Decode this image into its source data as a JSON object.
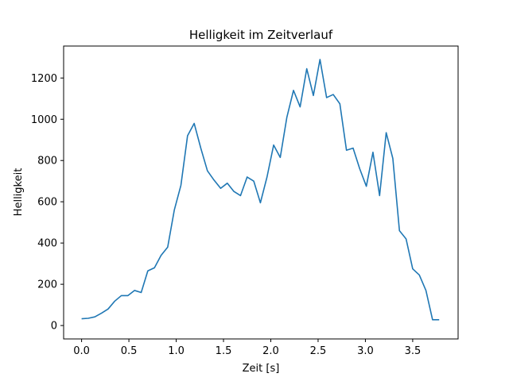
{
  "chart_data": {
    "type": "line",
    "title": "Helligkeit im Zeitverlauf",
    "xlabel": "Zeit [s]",
    "ylabel": "Helligkeit",
    "xlim": [
      -0.19,
      3.98
    ],
    "ylim": [
      -65,
      1355
    ],
    "xticks": [
      0.0,
      0.5,
      1.0,
      1.5,
      2.0,
      2.5,
      3.0,
      3.5
    ],
    "xtick_labels": [
      "0.0",
      "0.5",
      "1.0",
      "1.5",
      "2.0",
      "2.5",
      "3.0",
      "3.5"
    ],
    "yticks": [
      0,
      200,
      400,
      600,
      800,
      1000,
      1200
    ],
    "ytick_labels": [
      "0",
      "200",
      "400",
      "600",
      "800",
      "1000",
      "1200"
    ],
    "grid": false,
    "series": [
      {
        "color": "#1f77b4",
        "x": [
          0.0,
          0.07,
          0.14,
          0.21,
          0.28,
          0.35,
          0.42,
          0.49,
          0.56,
          0.63,
          0.7,
          0.77,
          0.84,
          0.91,
          0.98,
          1.05,
          1.12,
          1.19,
          1.26,
          1.33,
          1.4,
          1.47,
          1.54,
          1.61,
          1.68,
          1.75,
          1.82,
          1.89,
          1.96,
          2.03,
          2.1,
          2.17,
          2.24,
          2.31,
          2.38,
          2.45,
          2.52,
          2.59,
          2.66,
          2.73,
          2.8,
          2.87,
          2.94,
          3.01,
          3.08,
          3.15,
          3.22,
          3.29,
          3.36,
          3.43,
          3.5,
          3.57,
          3.64,
          3.71,
          3.78
        ],
        "y": [
          33,
          35,
          42,
          60,
          80,
          118,
          145,
          145,
          170,
          160,
          265,
          280,
          340,
          380,
          560,
          680,
          920,
          980,
          860,
          750,
          705,
          665,
          690,
          650,
          630,
          720,
          700,
          595,
          720,
          875,
          815,
          1010,
          1140,
          1060,
          1245,
          1115,
          1290,
          1105,
          1120,
          1075,
          850,
          860,
          760,
          675,
          840,
          630,
          935,
          810,
          460,
          420,
          275,
          245,
          170,
          28,
          28
        ]
      }
    ]
  }
}
